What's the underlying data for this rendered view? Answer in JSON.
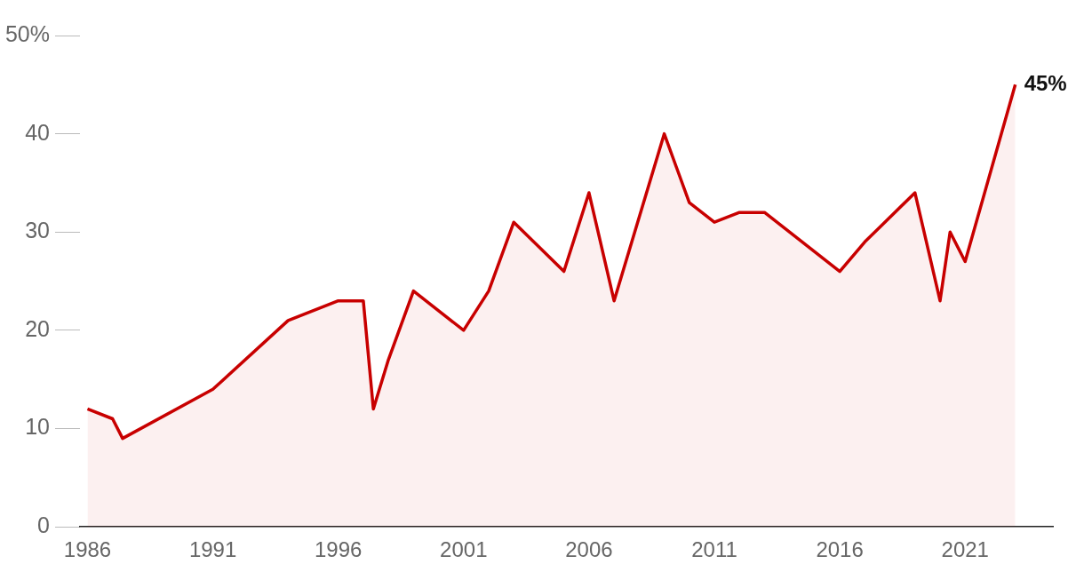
{
  "chart_data": {
    "type": "area",
    "x": [
      1986,
      1987,
      1987.4,
      1991,
      1994,
      1996,
      1997,
      1997.4,
      1998,
      1999,
      2001,
      2002,
      2003,
      2005,
      2006,
      2007,
      2009,
      2010,
      2011,
      2012,
      2013,
      2016,
      2017,
      2019,
      2020,
      2020.4,
      2021,
      2023
    ],
    "series": [
      {
        "color": "#c80000",
        "values": [
          12,
          11,
          9,
          14,
          21,
          23,
          23,
          12,
          17,
          24,
          20,
          24,
          31,
          26,
          34,
          23,
          40,
          33,
          31,
          32,
          32,
          26,
          29,
          34,
          23,
          30,
          27,
          45
        ]
      }
    ],
    "xlim": [
      1985.7,
      2024.5
    ],
    "xticks": [
      1986,
      1991,
      1996,
      2001,
      2006,
      2011,
      2016,
      2021
    ],
    "ylim": [
      0,
      50
    ],
    "yticks": [
      0,
      10,
      20,
      30,
      40,
      {
        "value": 50,
        "label": "50%"
      }
    ],
    "annotations": [
      {
        "text": "45%",
        "x": 2023,
        "y": 45
      }
    ],
    "grid": false,
    "legend": false,
    "marker": "none",
    "line_style": "solid"
  }
}
